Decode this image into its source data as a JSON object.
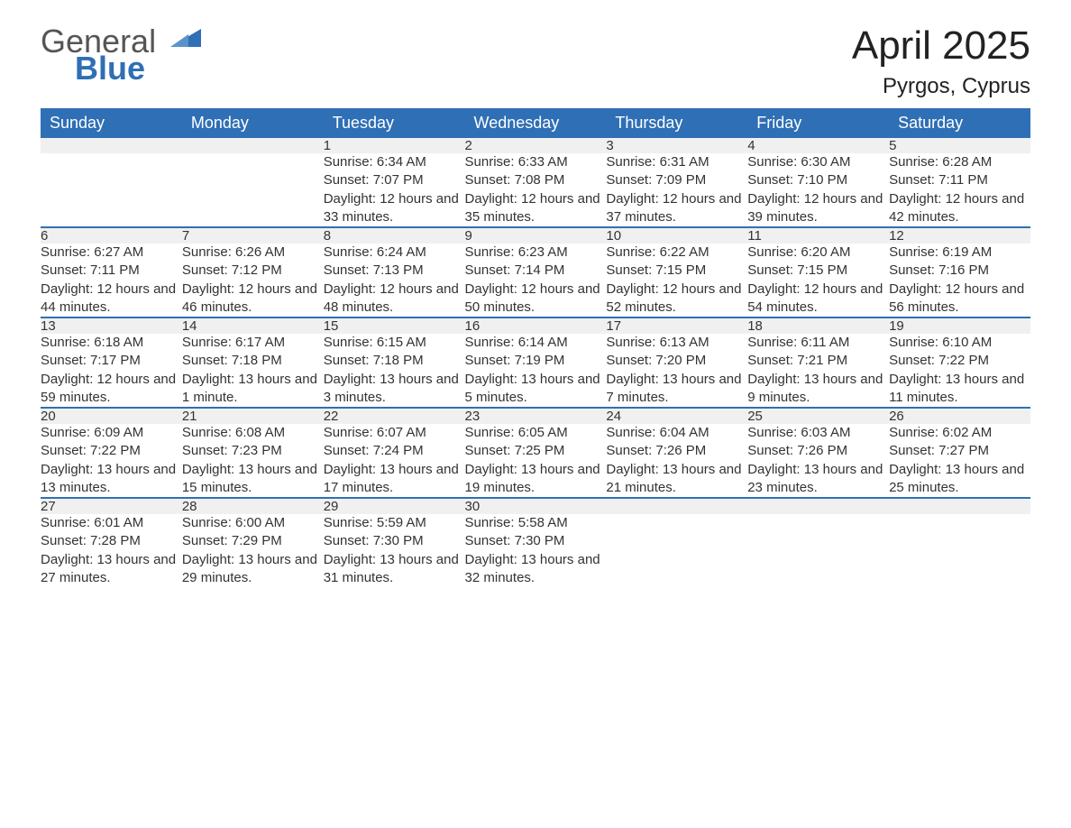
{
  "logo": {
    "text_general": "General",
    "text_blue": "Blue"
  },
  "header": {
    "month_title": "April 2025",
    "location": "Pyrgos, Cyprus"
  },
  "colors": {
    "accent": "#2f6fb5",
    "header_bg": "#2f6fb5",
    "header_text": "#ffffff",
    "daynum_bg": "#f0f0f0",
    "body_text": "#333333",
    "background": "#ffffff"
  },
  "calendar": {
    "day_headers": [
      "Sunday",
      "Monday",
      "Tuesday",
      "Wednesday",
      "Thursday",
      "Friday",
      "Saturday"
    ],
    "weeks": [
      [
        null,
        null,
        {
          "day": "1",
          "sunrise": "Sunrise: 6:34 AM",
          "sunset": "Sunset: 7:07 PM",
          "daylight": "Daylight: 12 hours and 33 minutes."
        },
        {
          "day": "2",
          "sunrise": "Sunrise: 6:33 AM",
          "sunset": "Sunset: 7:08 PM",
          "daylight": "Daylight: 12 hours and 35 minutes."
        },
        {
          "day": "3",
          "sunrise": "Sunrise: 6:31 AM",
          "sunset": "Sunset: 7:09 PM",
          "daylight": "Daylight: 12 hours and 37 minutes."
        },
        {
          "day": "4",
          "sunrise": "Sunrise: 6:30 AM",
          "sunset": "Sunset: 7:10 PM",
          "daylight": "Daylight: 12 hours and 39 minutes."
        },
        {
          "day": "5",
          "sunrise": "Sunrise: 6:28 AM",
          "sunset": "Sunset: 7:11 PM",
          "daylight": "Daylight: 12 hours and 42 minutes."
        }
      ],
      [
        {
          "day": "6",
          "sunrise": "Sunrise: 6:27 AM",
          "sunset": "Sunset: 7:11 PM",
          "daylight": "Daylight: 12 hours and 44 minutes."
        },
        {
          "day": "7",
          "sunrise": "Sunrise: 6:26 AM",
          "sunset": "Sunset: 7:12 PM",
          "daylight": "Daylight: 12 hours and 46 minutes."
        },
        {
          "day": "8",
          "sunrise": "Sunrise: 6:24 AM",
          "sunset": "Sunset: 7:13 PM",
          "daylight": "Daylight: 12 hours and 48 minutes."
        },
        {
          "day": "9",
          "sunrise": "Sunrise: 6:23 AM",
          "sunset": "Sunset: 7:14 PM",
          "daylight": "Daylight: 12 hours and 50 minutes."
        },
        {
          "day": "10",
          "sunrise": "Sunrise: 6:22 AM",
          "sunset": "Sunset: 7:15 PM",
          "daylight": "Daylight: 12 hours and 52 minutes."
        },
        {
          "day": "11",
          "sunrise": "Sunrise: 6:20 AM",
          "sunset": "Sunset: 7:15 PM",
          "daylight": "Daylight: 12 hours and 54 minutes."
        },
        {
          "day": "12",
          "sunrise": "Sunrise: 6:19 AM",
          "sunset": "Sunset: 7:16 PM",
          "daylight": "Daylight: 12 hours and 56 minutes."
        }
      ],
      [
        {
          "day": "13",
          "sunrise": "Sunrise: 6:18 AM",
          "sunset": "Sunset: 7:17 PM",
          "daylight": "Daylight: 12 hours and 59 minutes."
        },
        {
          "day": "14",
          "sunrise": "Sunrise: 6:17 AM",
          "sunset": "Sunset: 7:18 PM",
          "daylight": "Daylight: 13 hours and 1 minute."
        },
        {
          "day": "15",
          "sunrise": "Sunrise: 6:15 AM",
          "sunset": "Sunset: 7:18 PM",
          "daylight": "Daylight: 13 hours and 3 minutes."
        },
        {
          "day": "16",
          "sunrise": "Sunrise: 6:14 AM",
          "sunset": "Sunset: 7:19 PM",
          "daylight": "Daylight: 13 hours and 5 minutes."
        },
        {
          "day": "17",
          "sunrise": "Sunrise: 6:13 AM",
          "sunset": "Sunset: 7:20 PM",
          "daylight": "Daylight: 13 hours and 7 minutes."
        },
        {
          "day": "18",
          "sunrise": "Sunrise: 6:11 AM",
          "sunset": "Sunset: 7:21 PM",
          "daylight": "Daylight: 13 hours and 9 minutes."
        },
        {
          "day": "19",
          "sunrise": "Sunrise: 6:10 AM",
          "sunset": "Sunset: 7:22 PM",
          "daylight": "Daylight: 13 hours and 11 minutes."
        }
      ],
      [
        {
          "day": "20",
          "sunrise": "Sunrise: 6:09 AM",
          "sunset": "Sunset: 7:22 PM",
          "daylight": "Daylight: 13 hours and 13 minutes."
        },
        {
          "day": "21",
          "sunrise": "Sunrise: 6:08 AM",
          "sunset": "Sunset: 7:23 PM",
          "daylight": "Daylight: 13 hours and 15 minutes."
        },
        {
          "day": "22",
          "sunrise": "Sunrise: 6:07 AM",
          "sunset": "Sunset: 7:24 PM",
          "daylight": "Daylight: 13 hours and 17 minutes."
        },
        {
          "day": "23",
          "sunrise": "Sunrise: 6:05 AM",
          "sunset": "Sunset: 7:25 PM",
          "daylight": "Daylight: 13 hours and 19 minutes."
        },
        {
          "day": "24",
          "sunrise": "Sunrise: 6:04 AM",
          "sunset": "Sunset: 7:26 PM",
          "daylight": "Daylight: 13 hours and 21 minutes."
        },
        {
          "day": "25",
          "sunrise": "Sunrise: 6:03 AM",
          "sunset": "Sunset: 7:26 PM",
          "daylight": "Daylight: 13 hours and 23 minutes."
        },
        {
          "day": "26",
          "sunrise": "Sunrise: 6:02 AM",
          "sunset": "Sunset: 7:27 PM",
          "daylight": "Daylight: 13 hours and 25 minutes."
        }
      ],
      [
        {
          "day": "27",
          "sunrise": "Sunrise: 6:01 AM",
          "sunset": "Sunset: 7:28 PM",
          "daylight": "Daylight: 13 hours and 27 minutes."
        },
        {
          "day": "28",
          "sunrise": "Sunrise: 6:00 AM",
          "sunset": "Sunset: 7:29 PM",
          "daylight": "Daylight: 13 hours and 29 minutes."
        },
        {
          "day": "29",
          "sunrise": "Sunrise: 5:59 AM",
          "sunset": "Sunset: 7:30 PM",
          "daylight": "Daylight: 13 hours and 31 minutes."
        },
        {
          "day": "30",
          "sunrise": "Sunrise: 5:58 AM",
          "sunset": "Sunset: 7:30 PM",
          "daylight": "Daylight: 13 hours and 32 minutes."
        },
        null,
        null,
        null
      ]
    ]
  }
}
